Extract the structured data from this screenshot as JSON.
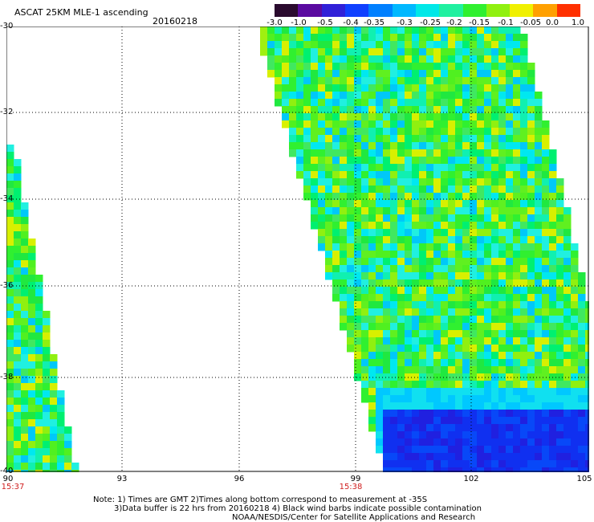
{
  "header": {
    "title": "ASCAT 25KM MLE-1 ascending",
    "date": "20160218"
  },
  "colorbar": {
    "ticks": [
      "-3.0",
      "-1.0",
      "-0.5",
      "-0.4",
      "-0.35",
      "-0.3",
      "-0.25",
      "-0.2",
      "-0.15",
      "-0.1",
      "-0.05",
      "0.0",
      "1.0"
    ],
    "colors": [
      "#2a0a2e",
      "#5a0aa0",
      "#3020d8",
      "#1040ff",
      "#0080ff",
      "#00b8ff",
      "#00e8e8",
      "#20f0a0",
      "#30f030",
      "#90f010",
      "#f0f000",
      "#ffa000",
      "#ff3000"
    ]
  },
  "axes": {
    "lat_labels": [
      "-30",
      "-32",
      "-34",
      "-36",
      "-38",
      "-40"
    ],
    "lon_labels": [
      "90",
      "93",
      "96",
      "99",
      "102",
      "105"
    ],
    "time_labels": [
      "15:37",
      "15:38"
    ]
  },
  "footer": {
    "line1": "Note: 1) Times are GMT 2)Times along bottom correspond to measurement at -35S",
    "line2": "3)Data buffer is 22 hrs from 20160218 4) Black wind barbs indicate possible contamination",
    "line3": "NOAA/NESDIS/Center for Satellite Applications and Research"
  }
}
